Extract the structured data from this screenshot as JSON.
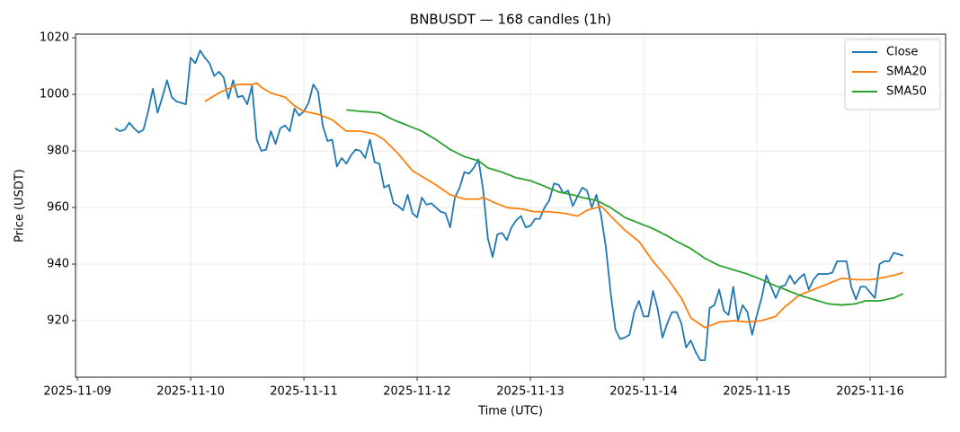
{
  "chart_data": {
    "type": "line",
    "title": "BNBUSDT — 168 candles (1h)",
    "xlabel": "Time (UTC)",
    "ylabel": "Price (USDT)",
    "xlim": [
      -8.4,
      176
    ],
    "xticks": [
      {
        "value": -8,
        "label": "2025-11-09"
      },
      {
        "value": 16,
        "label": "2025-11-10"
      },
      {
        "value": 40,
        "label": "2025-11-11"
      },
      {
        "value": 64,
        "label": "2025-11-12"
      },
      {
        "value": 88,
        "label": "2025-11-13"
      },
      {
        "value": 112,
        "label": "2025-11-14"
      },
      {
        "value": 136,
        "label": "2025-11-15"
      },
      {
        "value": 160,
        "label": "2025-11-16"
      }
    ],
    "ylim": [
      900,
      1021.3
    ],
    "yticks": [
      920,
      940,
      960,
      980,
      1000,
      1020
    ],
    "grid": true,
    "legend": "upper right",
    "series": [
      {
        "name": "Close",
        "color": "#1f77b4",
        "values": [
          988,
          987,
          987.5,
          990,
          988,
          986.5,
          987.5,
          994,
          1002,
          993.5,
          999,
          1005,
          999,
          997.5,
          997,
          996.5,
          1013,
          1011,
          1015.5,
          1013,
          1011,
          1006.5,
          1008,
          1006,
          998.5,
          1005,
          999,
          999.5,
          996.5,
          1003,
          984,
          980,
          980.5,
          987,
          982.5,
          988,
          989,
          987,
          995,
          992.5,
          994,
          997,
          1003.5,
          1001,
          989,
          983.5,
          984,
          974.5,
          977.5,
          975.5,
          978.5,
          980.5,
          980,
          977.5,
          984,
          976,
          975.5,
          967,
          968,
          961.5,
          960.5,
          959,
          964.5,
          958,
          956.5,
          963.5,
          961,
          961.5,
          960,
          958.5,
          958,
          953,
          963.5,
          967,
          972.5,
          972,
          974,
          977,
          966,
          949,
          942.5,
          950.5,
          951,
          948.5,
          953,
          955.5,
          957,
          953,
          953.5,
          956,
          956,
          960,
          962.5,
          968.5,
          968,
          965,
          966,
          960.5,
          964,
          967,
          966,
          960,
          964.5,
          957,
          946,
          930,
          917,
          913.5,
          914,
          915,
          923,
          927,
          921.5,
          921.5,
          930.5,
          924,
          914,
          919,
          923,
          923,
          919,
          910.5,
          913,
          909,
          906,
          906,
          924.5,
          925.5,
          931,
          923.5,
          922,
          932,
          920,
          925.5,
          923,
          915,
          922,
          928,
          936,
          932,
          928,
          932,
          932.5,
          936,
          933,
          935,
          936.5,
          931,
          934.5,
          936.5,
          936.5,
          936.5,
          937,
          941,
          941,
          941,
          932,
          927.5,
          932,
          932,
          930,
          928,
          940,
          941,
          941,
          944,
          943.5,
          943
        ]
      },
      {
        "name": "SMA20",
        "color": "#ff7f0e",
        "values": [
          null,
          null,
          null,
          null,
          null,
          null,
          null,
          null,
          null,
          null,
          null,
          null,
          null,
          null,
          null,
          null,
          null,
          null,
          null,
          997.5,
          998.5,
          999.5,
          1000.5,
          1001.3,
          1002,
          1002.8,
          1003.5,
          1003.5,
          1003.5,
          1003.5,
          1004,
          1002.5,
          1001.5,
          1000.5,
          1000,
          999.5,
          999,
          997.5,
          996,
          995,
          994,
          993.7,
          993.3,
          993,
          992.3,
          991.7,
          991,
          989.7,
          988.3,
          987,
          987,
          987,
          987,
          986.7,
          986.3,
          986,
          985,
          984,
          982.3,
          980.7,
          979,
          977,
          975,
          973,
          972,
          971,
          970,
          969,
          968,
          966.8,
          965.7,
          964.5,
          964,
          963.5,
          963,
          963,
          963,
          963,
          963.5,
          962.8,
          962,
          961.3,
          960.7,
          960,
          959.8,
          959.7,
          959.5,
          959.2,
          958.8,
          958.5,
          958.5,
          958.5,
          958.5,
          958.3,
          958.2,
          958,
          957.7,
          957.3,
          957,
          958,
          959,
          959.5,
          960,
          960.5,
          958.8,
          957,
          955.3,
          953.7,
          952,
          950.7,
          949.3,
          948,
          945.7,
          943.3,
          941,
          939,
          937,
          935,
          932.7,
          930.3,
          928,
          924.5,
          921,
          919.8,
          918.7,
          917.5,
          918.2,
          918.8,
          919.5,
          919.7,
          919.8,
          920,
          919.8,
          919.7,
          919.5,
          919.7,
          919.8,
          920,
          920.5,
          921,
          921.5,
          923.3,
          925,
          926.3,
          927.7,
          929,
          929.7,
          930.3,
          931,
          931.7,
          932.3,
          933,
          933.7,
          934.3,
          935,
          934.8,
          934.7,
          934.5,
          934.5,
          934.5,
          934.5,
          934.7,
          935,
          935.3,
          935.7,
          936,
          936.5,
          937
        ]
      },
      {
        "name": "SMA50",
        "color": "#2ca02c",
        "values": [
          null,
          null,
          null,
          null,
          null,
          null,
          null,
          null,
          null,
          null,
          null,
          null,
          null,
          null,
          null,
          null,
          null,
          null,
          null,
          null,
          null,
          null,
          null,
          null,
          null,
          null,
          null,
          null,
          null,
          null,
          null,
          null,
          null,
          null,
          null,
          null,
          null,
          null,
          null,
          null,
          null,
          null,
          null,
          null,
          null,
          null,
          null,
          null,
          null,
          994.5,
          994.3,
          994.2,
          994,
          993.9,
          993.8,
          993.6,
          993.5,
          992.7,
          991.8,
          991,
          990.3,
          989.7,
          989,
          988.3,
          987.7,
          987,
          986,
          985,
          984,
          982.8,
          981.7,
          980.5,
          979.7,
          978.8,
          978,
          977.5,
          977,
          976.5,
          975.3,
          974,
          973.5,
          973,
          972.5,
          971.8,
          971.2,
          970.5,
          970.2,
          969.8,
          969.5,
          968.8,
          968.2,
          967.5,
          966.8,
          966.2,
          965.5,
          965.2,
          964.8,
          964.5,
          964,
          963.5,
          963.2,
          962.8,
          962.5,
          961.7,
          960.8,
          960,
          958.8,
          957.7,
          956.5,
          955.8,
          955.2,
          954.5,
          953.8,
          953.2,
          952.5,
          951.7,
          950.8,
          950,
          949,
          948,
          947.2,
          946.3,
          945.5,
          944.3,
          943.2,
          942,
          941.2,
          940.3,
          939.5,
          939,
          938.5,
          938,
          937.5,
          937,
          936.5,
          935.8,
          935.2,
          934.5,
          933.8,
          933,
          932.3,
          931.7,
          931,
          930.3,
          929.7,
          929,
          928.5,
          928,
          927.5,
          927,
          926.5,
          926,
          925.8,
          925.7,
          925.5,
          925.7,
          925.8,
          926,
          926.5,
          927,
          927,
          927,
          927,
          927.3,
          927.7,
          928,
          928.8,
          929.5
        ]
      }
    ]
  }
}
